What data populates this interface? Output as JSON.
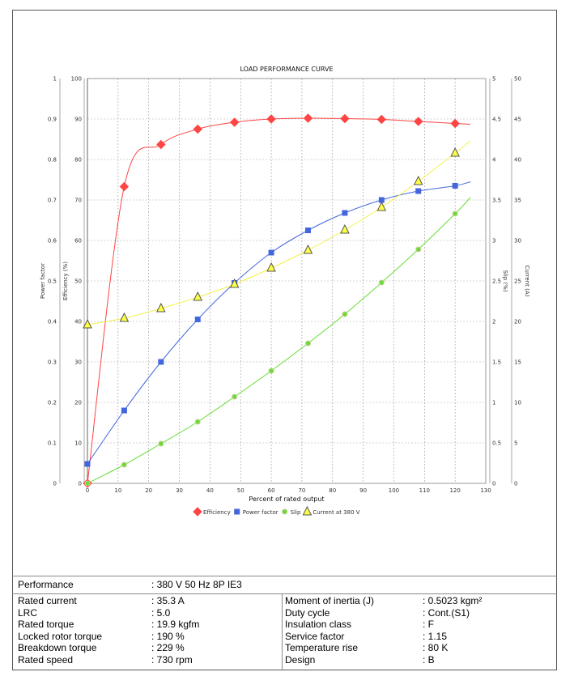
{
  "chart_data": {
    "type": "line",
    "title": "LOAD PERFORMANCE CURVE",
    "xlabel": "Percent of rated output",
    "xlim": [
      0,
      130
    ],
    "xticks": [
      0,
      10,
      20,
      30,
      40,
      50,
      60,
      70,
      80,
      90,
      100,
      110,
      120,
      130
    ],
    "axes": {
      "power_factor": {
        "label": "Power factor",
        "range": [
          0,
          1
        ],
        "ticks": [
          "0",
          "0.1",
          "0.2",
          "0.3",
          "0.4",
          "0.5",
          "0.6",
          "0.7",
          "0.8",
          "0.9",
          "1"
        ]
      },
      "efficiency": {
        "label": "Efficiency (%)",
        "range": [
          0,
          100
        ],
        "ticks": [
          "0",
          "10",
          "20",
          "30",
          "40",
          "50",
          "60",
          "70",
          "80",
          "90",
          "100"
        ]
      },
      "slip": {
        "label": "Slip (%)",
        "range": [
          0,
          5
        ],
        "ticks": [
          "0",
          "0.5",
          "1",
          "1.5",
          "2",
          "2.5",
          "3",
          "3.5",
          "4",
          "4.5",
          "5"
        ]
      },
      "current": {
        "label": "Current (A)",
        "range": [
          0,
          50
        ],
        "ticks": [
          "0",
          "5",
          "10",
          "15",
          "20",
          "25",
          "30",
          "35",
          "40",
          "45",
          "50"
        ]
      }
    },
    "x": [
      0,
      12,
      24,
      36,
      48,
      60,
      72,
      84,
      96,
      108,
      120
    ],
    "series": [
      {
        "name": "Efficiency",
        "axis": "efficiency",
        "color": "#ff4444",
        "marker": "diamond",
        "values": [
          0,
          73.3,
          83.7,
          87.5,
          89.2,
          90.0,
          90.2,
          90.1,
          89.9,
          89.4,
          88.9
        ],
        "curve_end": [
          125,
          88.7
        ]
      },
      {
        "name": "Power factor",
        "axis": "power_factor",
        "color": "#4466dd",
        "marker": "square",
        "values": [
          0.048,
          0.18,
          0.3,
          0.405,
          0.495,
          0.57,
          0.625,
          0.668,
          0.7,
          0.722,
          0.735
        ],
        "curve_end": [
          125,
          0.745
        ]
      },
      {
        "name": "Slip",
        "axis": "slip",
        "color": "#66dd33",
        "marker": "circle",
        "values": [
          0,
          0.23,
          0.49,
          0.76,
          1.07,
          1.39,
          1.73,
          2.09,
          2.48,
          2.89,
          3.33
        ],
        "curve_end": [
          125,
          3.53
        ]
      },
      {
        "name": "Current at 380 V",
        "axis": "current",
        "color": "#ffff44",
        "marker": "triangle",
        "values": [
          19.6,
          20.4,
          21.6,
          23.0,
          24.6,
          26.6,
          28.8,
          31.3,
          34.1,
          37.3,
          40.8
        ],
        "curve_end": [
          125,
          42.3
        ]
      }
    ],
    "grid": true,
    "legend": "bottom"
  },
  "table": {
    "performance": {
      "label": "Performance",
      "value": ": 380 V 50 Hz 8P IE3"
    },
    "left": [
      {
        "label": "Rated current",
        "value": ": 35.3 A"
      },
      {
        "label": "LRC",
        "value": ": 5.0"
      },
      {
        "label": "Rated torque",
        "value": ": 19.9 kgfm"
      },
      {
        "label": "Locked rotor torque",
        "value": ": 190 %"
      },
      {
        "label": "Breakdown torque",
        "value": ": 229 %"
      },
      {
        "label": "Rated speed",
        "value": ": 730 rpm"
      }
    ],
    "right": [
      {
        "label": "Moment of inertia (J)",
        "value": ": 0.5023 kgm²"
      },
      {
        "label": "Duty cycle",
        "value": ": Cont.(S1)"
      },
      {
        "label": "Insulation class",
        "value": ": F"
      },
      {
        "label": "Service factor",
        "value": ": 1.15"
      },
      {
        "label": "Temperature rise",
        "value": ": 80 K"
      },
      {
        "label": "Design",
        "value": ": B"
      }
    ]
  }
}
